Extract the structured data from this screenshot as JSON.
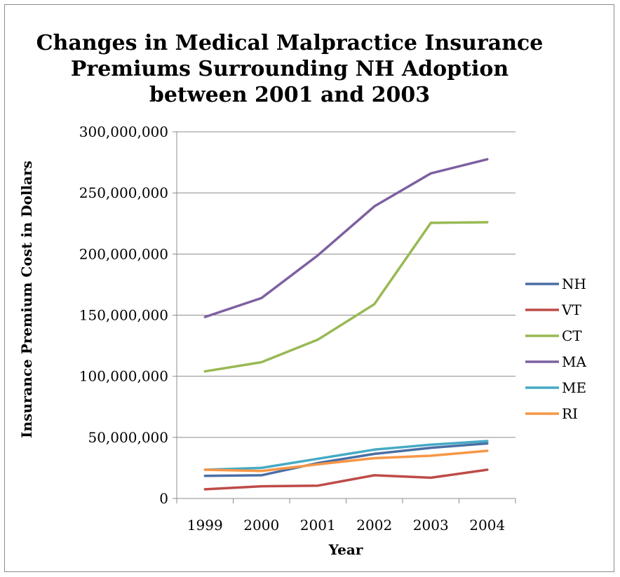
{
  "chart_data": {
    "type": "line",
    "title": "Changes in Medical Malpractice Insurance Premiums Surrounding NH Adoption between 2001 and 2003",
    "title_lines": [
      "Changes in Medical Malpractice Insurance",
      "Premiums Surrounding NH Adoption",
      "between 2001 and 2003"
    ],
    "xlabel": "Year",
    "ylabel": "Insurance Premium Cost in Dollars",
    "categories": [
      "1999",
      "2000",
      "2001",
      "2002",
      "2003",
      "2004"
    ],
    "ylim": [
      0,
      300000000
    ],
    "yticks": [
      0,
      50000000,
      100000000,
      150000000,
      200000000,
      250000000,
      300000000
    ],
    "ytick_labels": [
      "0",
      "50,000,000",
      "100,000,000",
      "150,000,000",
      "200,000,000",
      "250,000,000",
      "300,000,000"
    ],
    "grid": "horizontal",
    "legend_position": "right",
    "series": [
      {
        "name": "NH",
        "color": "#4a6fa5",
        "values": [
          18500000,
          19000000,
          29000000,
          36500000,
          41500000,
          45000000
        ]
      },
      {
        "name": "VT",
        "color": "#be4b48",
        "values": [
          7500000,
          10000000,
          10500000,
          19000000,
          17000000,
          23500000
        ]
      },
      {
        "name": "CT",
        "color": "#98b954",
        "values": [
          104000000,
          111500000,
          130000000,
          159000000,
          225500000,
          226000000
        ]
      },
      {
        "name": "MA",
        "color": "#7d60a0",
        "values": [
          148500000,
          164000000,
          199000000,
          239000000,
          266000000,
          277500000
        ]
      },
      {
        "name": "ME",
        "color": "#46aac5",
        "values": [
          23500000,
          25000000,
          32500000,
          40000000,
          44000000,
          47000000
        ]
      },
      {
        "name": "RI",
        "color": "#f79646",
        "values": [
          23500000,
          22500000,
          28000000,
          33000000,
          35000000,
          39000000
        ]
      }
    ]
  }
}
